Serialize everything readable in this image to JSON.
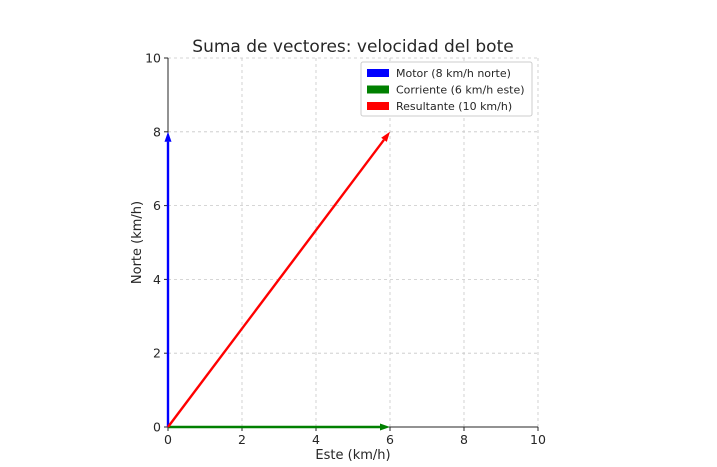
{
  "chart_data": {
    "type": "vector",
    "title": "Suma de vectores: velocidad del bote",
    "xlabel": "Este (km/h)",
    "ylabel": "Norte (km/h)",
    "xlim": [
      0,
      10
    ],
    "ylim": [
      0,
      10
    ],
    "xticks": [
      "0",
      "2",
      "4",
      "6",
      "8",
      "10"
    ],
    "yticks": [
      "0",
      "2",
      "4",
      "6",
      "8",
      "10"
    ],
    "grid": true,
    "legend_position": "top-right",
    "series": [
      {
        "name": "Motor (8 km/h norte)",
        "color": "#0000ff",
        "x0": 0,
        "y0": 0,
        "x1": 0,
        "y1": 8
      },
      {
        "name": "Corriente (6 km/h este)",
        "color": "#008000",
        "x0": 0,
        "y0": 0,
        "x1": 6,
        "y1": 0
      },
      {
        "name": "Resultante (10 km/h)",
        "color": "#ff0000",
        "x0": 0,
        "y0": 0,
        "x1": 6,
        "y1": 8
      }
    ]
  }
}
